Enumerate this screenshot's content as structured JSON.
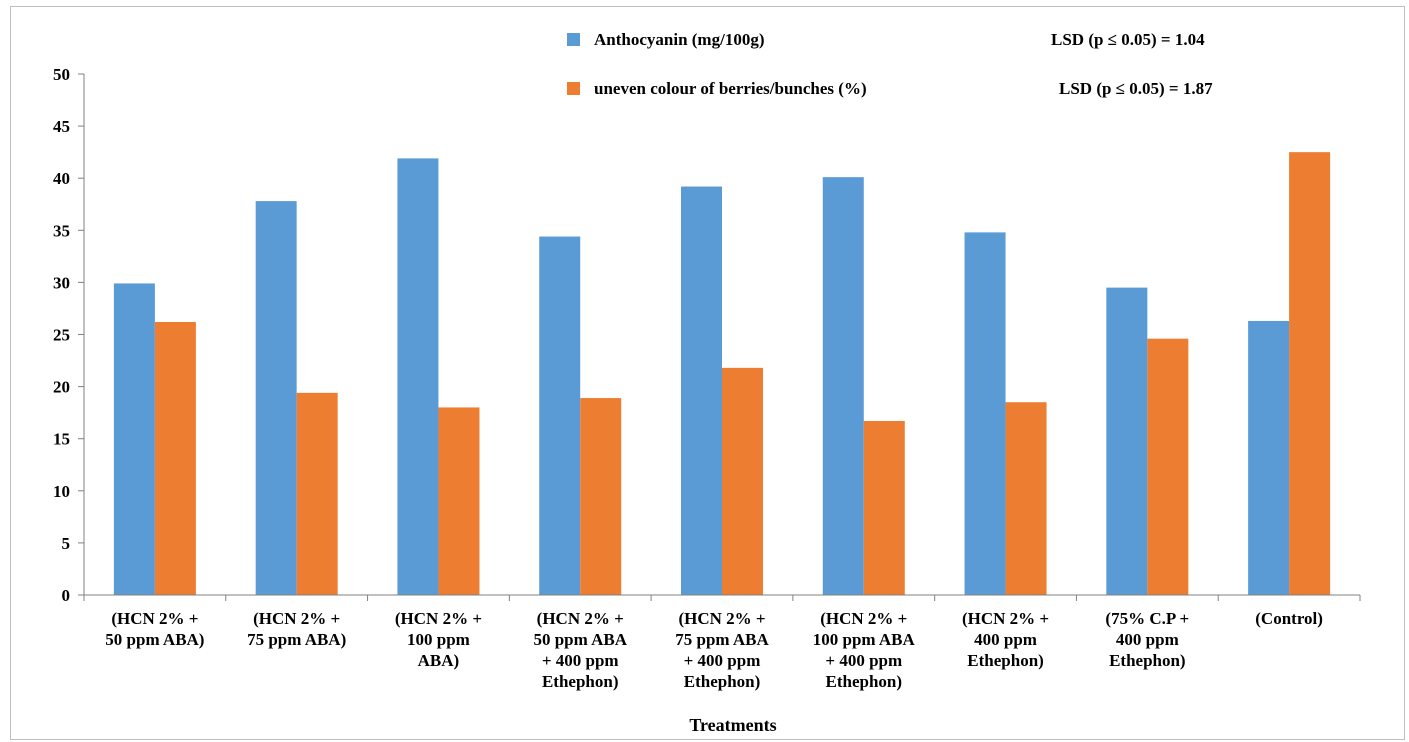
{
  "chart_data": {
    "type": "bar",
    "title": "",
    "xlabel": "Treatments",
    "ylabel": "",
    "ylim": [
      0,
      50
    ],
    "yticks": [
      0,
      5,
      10,
      15,
      20,
      25,
      30,
      35,
      40,
      45,
      50
    ],
    "grid": false,
    "legend_position": "top",
    "categories": [
      [
        "(HCN 2% +",
        "50 ppm ABA)"
      ],
      [
        "(HCN 2% +",
        "75 ppm ABA)"
      ],
      [
        "(HCN 2% +",
        "100 ppm",
        "ABA)"
      ],
      [
        "(HCN 2% +",
        "50 ppm ABA",
        "+ 400 ppm",
        "Ethephon)"
      ],
      [
        "(HCN 2% +",
        "75 ppm ABA",
        "+ 400 ppm",
        "Ethephon)"
      ],
      [
        "(HCN 2% +",
        "100 ppm ABA",
        "+ 400 ppm",
        "Ethephon)"
      ],
      [
        "(HCN 2% +",
        "400 ppm",
        "Ethephon)"
      ],
      [
        "(75% C.P +",
        "400 ppm",
        "Ethephon)"
      ],
      [
        "(Control)"
      ]
    ],
    "series": [
      {
        "name": "Anthocyanin (mg/100g)",
        "color": "#5b9bd5",
        "lsd": "LSD (p ≤ 0.05) = 1.04",
        "values": [
          29.9,
          37.8,
          41.9,
          34.4,
          39.2,
          40.1,
          34.8,
          29.5,
          26.3
        ]
      },
      {
        "name": "uneven colour of berries/bunches (%)",
        "color": "#ed7d31",
        "lsd": "LSD (p ≤ 0.05) = 1.87",
        "values": [
          26.2,
          19.4,
          18.0,
          18.9,
          21.8,
          16.7,
          18.5,
          24.6,
          42.5
        ]
      }
    ]
  }
}
